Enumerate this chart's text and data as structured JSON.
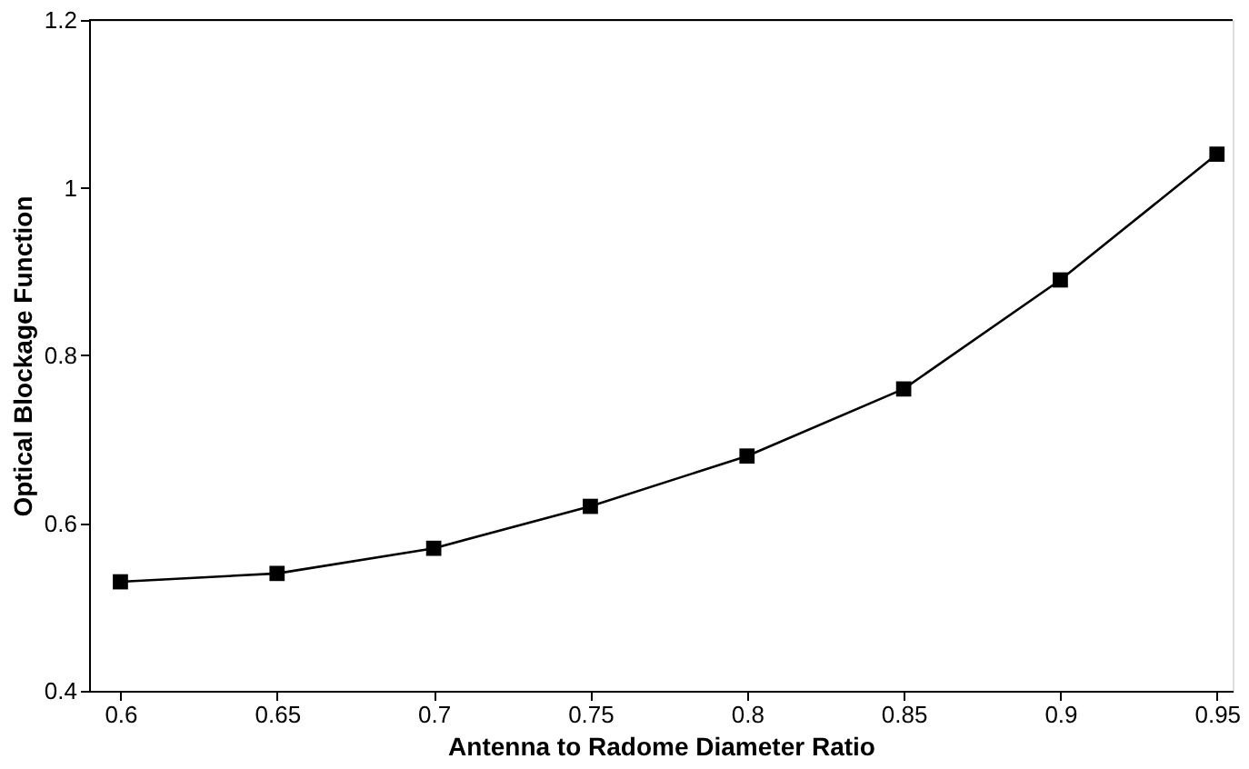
{
  "chart_data": {
    "type": "line",
    "xlabel": "Antenna to Radome Diameter Ratio",
    "ylabel": "Optical Blockage Function",
    "x": [
      0.6,
      0.65,
      0.7,
      0.75,
      0.8,
      0.85,
      0.9,
      0.95
    ],
    "series": [
      {
        "color": "#000000",
        "values": [
          0.53,
          0.54,
          0.57,
          0.62,
          0.68,
          0.76,
          0.89,
          1.04
        ]
      }
    ],
    "xlim": [
      0.59,
      0.955
    ],
    "xticks": [
      0.6,
      0.65,
      0.7,
      0.75,
      0.8,
      0.85,
      0.9,
      0.95
    ],
    "ylim": [
      0.4,
      1.2
    ],
    "yticks": [
      0.4,
      0.6,
      0.8,
      1,
      1.2
    ],
    "grid": false,
    "marker": "square",
    "line_style": "solid"
  }
}
